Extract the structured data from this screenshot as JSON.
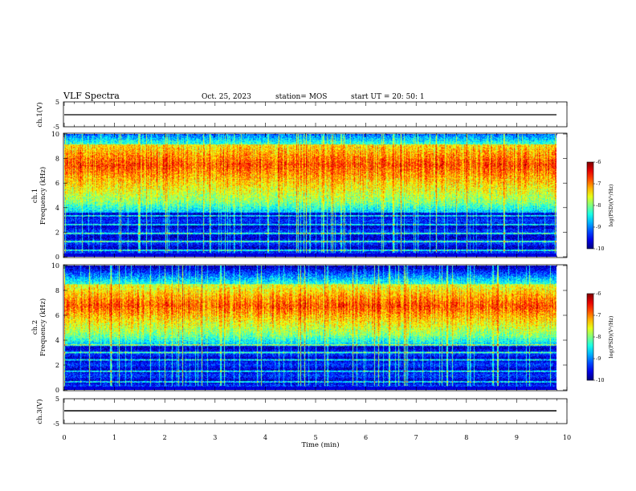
{
  "header": {
    "title": "VLF Spectra",
    "date": "Oct. 25, 2023",
    "station": "station= MOS",
    "start": "start  UT  =   20: 50: 1"
  },
  "chart_data": [
    {
      "type": "line",
      "panel": "ch1",
      "ylabel": "ch.1(V)",
      "ylim": [
        -5,
        5
      ],
      "yticks": [
        "5",
        "-5"
      ],
      "series": [
        {
          "values_const": -0.3
        }
      ]
    },
    {
      "type": "heatmap",
      "panel": "spec1",
      "ylabel_lines": [
        "ch.1",
        "Frequency (kHz)"
      ],
      "ylim": [
        0,
        10
      ],
      "yticks": [
        "0",
        "2",
        "4",
        "6",
        "8",
        "10"
      ],
      "emission_band_khz": [
        4.5,
        9.2
      ],
      "peak_khz": 7.5,
      "lines_khz": [
        0.5,
        1.2,
        1.9,
        2.6,
        3.3
      ],
      "colorbar": {
        "label": "log(PSD)(V²/Hz)",
        "range": [
          -10,
          -6
        ],
        "ticks": [
          "-6",
          "-7",
          "-8",
          "-9",
          "-10"
        ]
      }
    },
    {
      "type": "heatmap",
      "panel": "spec2",
      "ylabel_lines": [
        "ch.2",
        "Frequency (kHz)"
      ],
      "ylim": [
        0,
        10
      ],
      "yticks": [
        "0",
        "2",
        "4",
        "6",
        "8",
        "10"
      ],
      "emission_band_khz": [
        4.5,
        8.5
      ],
      "peak_khz": 6.8,
      "lines_khz": [
        0.6,
        1.5,
        2.4,
        3.0,
        3.6
      ],
      "colorbar": {
        "label": "log(PSD)(V²/Hz)",
        "range": [
          -10,
          -6
        ],
        "ticks": [
          "-6",
          "-7",
          "-8",
          "-9",
          "-10"
        ]
      }
    },
    {
      "type": "line",
      "panel": "ch3",
      "ylabel": "ch.3(V)",
      "ylim": [
        -5,
        5
      ],
      "yticks": [
        "5",
        "-5"
      ],
      "series": [
        {
          "values_const": -0.3
        }
      ]
    }
  ],
  "xaxis": {
    "label": "Time  (min)",
    "xlim": [
      0,
      10
    ],
    "ticks": [
      "0",
      "1",
      "2",
      "3",
      "4",
      "5",
      "6",
      "7",
      "8",
      "9",
      "10"
    ]
  }
}
